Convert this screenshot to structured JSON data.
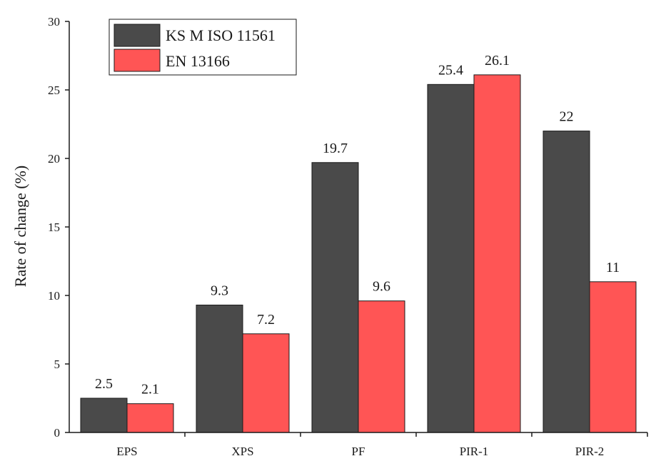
{
  "chart_data": {
    "type": "bar",
    "title": "",
    "xlabel": "",
    "ylabel": "Rate of change (%)",
    "ylim": [
      0,
      30
    ],
    "yticks": [
      0,
      5,
      10,
      15,
      20,
      25,
      30
    ],
    "ytick_labels": [
      "0",
      "5",
      "10",
      "15",
      "20",
      "25",
      "30"
    ],
    "categories": [
      "EPS",
      "XPS",
      "PF",
      "PIR-1",
      "PIR-2"
    ],
    "series": [
      {
        "name": "KS M ISO 11561",
        "color": "#4a4a4a",
        "values": [
          2.5,
          9.3,
          19.7,
          25.4,
          22
        ],
        "labels": [
          "2.5",
          "9.3",
          "19.7",
          "25.4",
          "22"
        ]
      },
      {
        "name": "EN 13166",
        "color": "#ff5555",
        "values": [
          2.1,
          7.2,
          9.6,
          26.1,
          11
        ],
        "labels": [
          "2.1",
          "7.2",
          "9.6",
          "26.1",
          "11"
        ]
      }
    ],
    "legend": "top-left",
    "grid": false
  }
}
